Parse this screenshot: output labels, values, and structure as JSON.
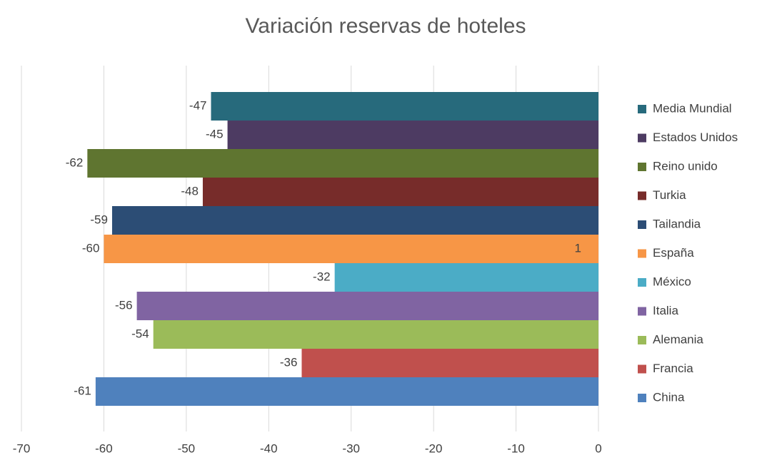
{
  "chart_data": {
    "type": "bar",
    "orientation": "horizontal",
    "title": "Variación reservas de hoteles",
    "categories": [
      "1"
    ],
    "series": [
      {
        "name": "China",
        "color": "#4f81bd",
        "values": [
          -61
        ]
      },
      {
        "name": "Francia",
        "color": "#c0504d",
        "values": [
          -36
        ]
      },
      {
        "name": "Alemania",
        "color": "#9bbb59",
        "values": [
          -54
        ]
      },
      {
        "name": "Italia",
        "color": "#8064a2",
        "values": [
          -56
        ]
      },
      {
        "name": "México",
        "color": "#4bacc6",
        "values": [
          -32
        ]
      },
      {
        "name": "España",
        "color": "#f79646",
        "values": [
          -60
        ]
      },
      {
        "name": "Tailandia",
        "color": "#2c4d75",
        "values": [
          -59
        ]
      },
      {
        "name": "Turkia",
        "color": "#772c2a",
        "values": [
          -48
        ]
      },
      {
        "name": "Reino unido",
        "color": "#5f7530",
        "values": [
          -62
        ]
      },
      {
        "name": "Estados Unidos",
        "color": "#4d3b62",
        "values": [
          -45
        ]
      },
      {
        "name": "Media Mundial",
        "color": "#276a7c",
        "values": [
          -47
        ]
      }
    ],
    "xlim": [
      -70,
      0
    ],
    "xticks": [
      -70,
      -60,
      -50,
      -40,
      -30,
      -20,
      -10,
      0
    ],
    "grid": true,
    "legend": "right"
  }
}
